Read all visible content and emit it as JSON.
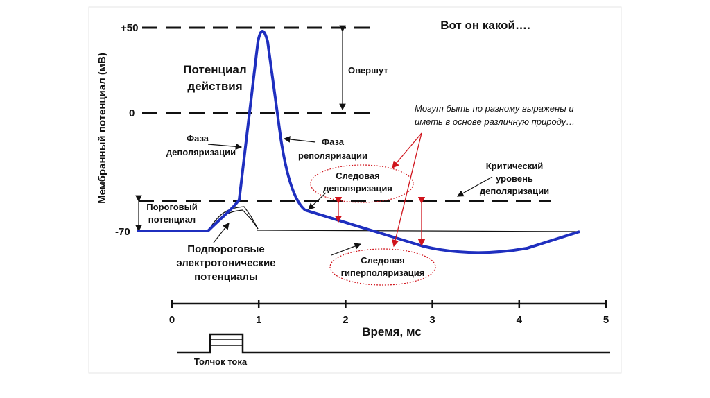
{
  "title": "Вот он какой….",
  "y_axis": {
    "label": "Мембранный потенциал (мВ)",
    "ticks": [
      "+50",
      "0",
      "-70"
    ]
  },
  "x_axis": {
    "label": "Время, мс",
    "ticks": [
      "0",
      "1",
      "2",
      "3",
      "4",
      "5"
    ]
  },
  "stimulus": "Толчок тока",
  "annotations": {
    "action_potential": [
      "Потенциал",
      "действия"
    ],
    "overshoot": "Овершут",
    "depolarization_phase": [
      "Фаза",
      "деполяризации"
    ],
    "repolarization_phase": [
      "Фаза",
      "реполяризации"
    ],
    "note": [
      "Могут быть по разному выражены и",
      "иметь в основе различную природу…"
    ],
    "trace_depolarization": [
      "Следовая",
      "деполяризация"
    ],
    "critical_level": [
      "Критический",
      "уровень",
      "деполяризации"
    ],
    "threshold": [
      "Пороговый",
      "потенциал"
    ],
    "subthreshold": [
      "Подпороговые",
      "электротонические",
      "потенциалы"
    ],
    "trace_hyperpolarization": [
      "Следовая",
      "гиперполяризация"
    ]
  }
}
